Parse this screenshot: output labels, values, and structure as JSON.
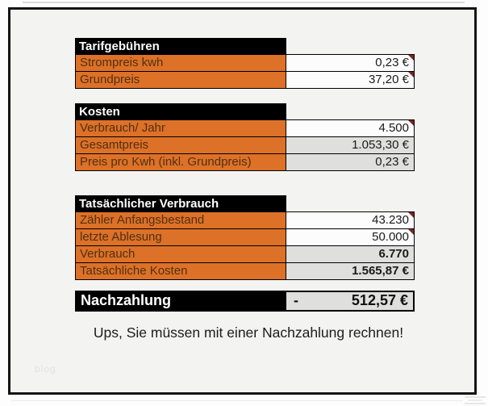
{
  "colors": {
    "label_cell_bg": "#dd7128",
    "label_text": "#503012",
    "section_header_bg": "#000000",
    "section_header_text": "#ffffff",
    "value_cell_white": "#fcfcfc",
    "value_cell_gray": "#dfdfdd",
    "comment_marker": "#7c2424",
    "frame_border": "#141414",
    "sheet_bg": "#f3f3f1"
  },
  "sections": [
    {
      "header": "Tarifgebühren",
      "rows": [
        {
          "label": "Strompreis kwh",
          "value": "0,23 €"
        },
        {
          "label": "Grundpreis",
          "value": "37,20 €"
        }
      ]
    },
    {
      "header": "Kosten",
      "rows": [
        {
          "label": "Verbrauch/ Jahr",
          "value": "4.500"
        },
        {
          "label": "Gesamtpreis",
          "value": "1.053,30 €"
        },
        {
          "label": "Preis pro Kwh (inkl. Grundpreis)",
          "value": "0,23 €"
        }
      ]
    },
    {
      "header": "Tatsächlicher Verbrauch",
      "rows": [
        {
          "label": "Zähler Anfangsbestand",
          "value": "43.230"
        },
        {
          "label": "letzte Ablesung",
          "value": "50.000"
        },
        {
          "label": "Verbrauch",
          "value": "6.770"
        },
        {
          "label": "Tatsächliche Kosten",
          "value": "1.565,87 €"
        }
      ]
    }
  ],
  "summary": {
    "label": "Nachzahlung",
    "sign": "-",
    "value": "512,57 €"
  },
  "message": "Ups, Sie müssen mit einer Nachzahlung rechnen!",
  "watermark": {
    "text": "blog"
  }
}
